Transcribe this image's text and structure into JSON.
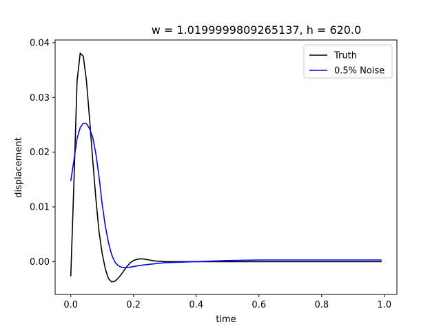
{
  "chart_data": {
    "type": "line",
    "title": "w = 1.0199999809265137, h = 620.0",
    "xlabel": "time",
    "ylabel": "displacement",
    "xlim": [
      -0.05,
      1.04
    ],
    "ylim": [
      -0.006,
      0.0405
    ],
    "xticks": [
      0.0,
      0.2,
      0.4,
      0.6,
      0.8,
      1.0
    ],
    "xtick_labels": [
      "0.0",
      "0.2",
      "0.4",
      "0.6",
      "0.8",
      "1.0"
    ],
    "yticks": [
      0.0,
      0.01,
      0.02,
      0.03,
      0.04
    ],
    "ytick_labels": [
      "0.00",
      "0.01",
      "0.02",
      "0.03",
      "0.04"
    ],
    "grid": false,
    "legend_position": "top-right",
    "series": [
      {
        "name": "Truth",
        "color": "#000000",
        "x": [
          0.0,
          0.01,
          0.02,
          0.03,
          0.04,
          0.05,
          0.06,
          0.07,
          0.08,
          0.09,
          0.1,
          0.11,
          0.12,
          0.13,
          0.14,
          0.15,
          0.16,
          0.17,
          0.18,
          0.19,
          0.2,
          0.21,
          0.22,
          0.23,
          0.24,
          0.25,
          0.27,
          0.3,
          0.35,
          0.4,
          0.5,
          0.6,
          0.7,
          0.8,
          0.9,
          0.99
        ],
        "y": [
          -0.0026,
          0.0145,
          0.033,
          0.0381,
          0.0375,
          0.033,
          0.026,
          0.0185,
          0.0115,
          0.0055,
          0.0015,
          -0.0013,
          -0.0031,
          -0.0037,
          -0.0036,
          -0.0031,
          -0.0024,
          -0.0016,
          -0.0008,
          -0.0002,
          0.0002,
          0.0004,
          0.0005,
          0.0005,
          0.0004,
          0.0003,
          0.0001,
          0.0,
          0.0,
          0.0,
          0.0,
          0.0,
          0.0,
          0.0,
          0.0,
          0.0
        ]
      },
      {
        "name": "0.5% Noise",
        "color": "#0000ff",
        "x": [
          0.0,
          0.01,
          0.02,
          0.03,
          0.04,
          0.05,
          0.06,
          0.07,
          0.08,
          0.09,
          0.1,
          0.11,
          0.12,
          0.13,
          0.14,
          0.15,
          0.16,
          0.17,
          0.18,
          0.19,
          0.2,
          0.22,
          0.25,
          0.3,
          0.35,
          0.4,
          0.5,
          0.6,
          0.7,
          0.8,
          0.9,
          0.99
        ],
        "y": [
          0.0148,
          0.0185,
          0.0225,
          0.0245,
          0.0253,
          0.0252,
          0.0243,
          0.0227,
          0.0197,
          0.0155,
          0.0105,
          0.0065,
          0.0035,
          0.0013,
          0.0,
          -0.0007,
          -0.001,
          -0.0011,
          -0.0011,
          -0.001,
          -0.0009,
          -0.0007,
          -0.0005,
          -0.0002,
          -0.0001,
          0.0,
          0.0002,
          0.0003,
          0.0003,
          0.0003,
          0.0003,
          0.0003
        ]
      }
    ]
  }
}
